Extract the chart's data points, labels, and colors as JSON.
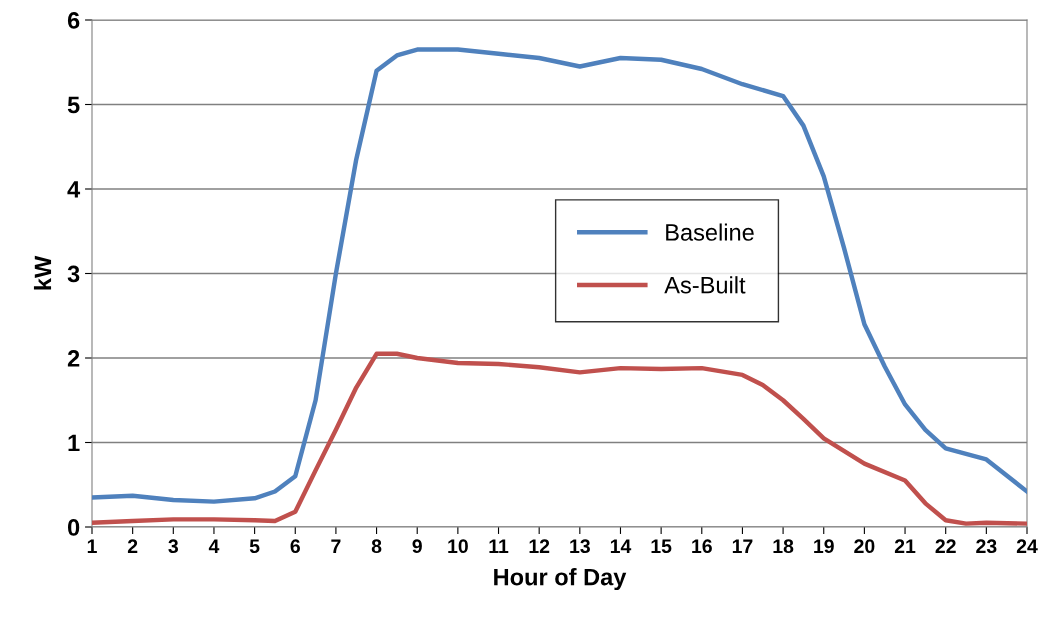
{
  "chart_data": {
    "type": "line",
    "xlabel": "Hour of Day",
    "ylabel": "kW",
    "series": [
      {
        "name": "Baseline",
        "color": "#4f81bd",
        "x": [
          1,
          2,
          3,
          4,
          5,
          5.5,
          6,
          6.5,
          7,
          7.5,
          8,
          8.5,
          9,
          10,
          11,
          12,
          13,
          14,
          15,
          16,
          17,
          18,
          18.5,
          19,
          19.5,
          20,
          20.5,
          21,
          21.5,
          22,
          23,
          24
        ],
        "values": [
          0.35,
          0.37,
          0.32,
          0.3,
          0.34,
          0.42,
          0.6,
          1.5,
          3.0,
          4.35,
          5.4,
          5.58,
          5.65,
          5.65,
          5.6,
          5.55,
          5.45,
          5.55,
          5.53,
          5.42,
          5.24,
          5.1,
          4.75,
          4.15,
          3.3,
          2.4,
          1.9,
          1.45,
          1.15,
          0.93,
          0.8,
          0.42
        ]
      },
      {
        "name": "As-Built",
        "color": "#c0504d",
        "x": [
          1,
          2,
          3,
          4,
          5,
          5.5,
          6,
          6.5,
          7,
          7.5,
          8,
          8.5,
          9,
          10,
          11,
          12,
          13,
          14,
          15,
          16,
          17,
          17.5,
          18,
          18.5,
          19,
          20,
          21,
          21.5,
          22,
          22.5,
          23,
          24
        ],
        "values": [
          0.05,
          0.07,
          0.09,
          0.09,
          0.08,
          0.07,
          0.18,
          0.67,
          1.15,
          1.65,
          2.05,
          2.05,
          2.0,
          1.94,
          1.93,
          1.89,
          1.83,
          1.88,
          1.87,
          1.88,
          1.8,
          1.68,
          1.5,
          1.28,
          1.05,
          0.75,
          0.55,
          0.28,
          0.08,
          0.04,
          0.05,
          0.04
        ]
      }
    ],
    "xlim": [
      1,
      24
    ],
    "xticks": [
      1,
      2,
      3,
      4,
      5,
      6,
      7,
      8,
      9,
      10,
      11,
      12,
      13,
      14,
      15,
      16,
      17,
      18,
      19,
      20,
      21,
      22,
      23,
      24
    ],
    "ylim": [
      0,
      6
    ],
    "yticks": [
      0,
      1,
      2,
      3,
      4,
      5,
      6
    ],
    "grid": "y",
    "legend": "center",
    "marker": "none",
    "line_style": "solid"
  }
}
